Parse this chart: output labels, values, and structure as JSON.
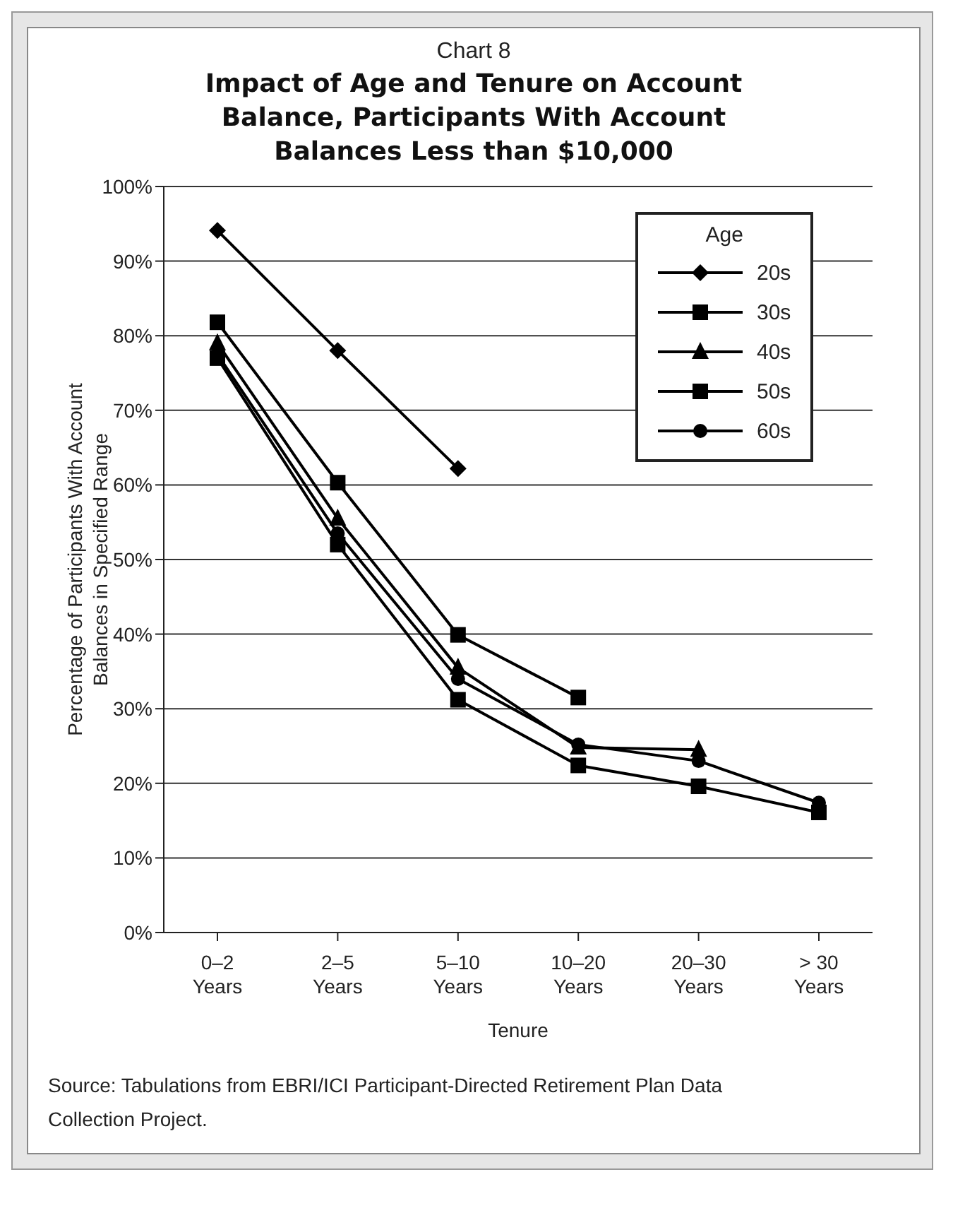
{
  "chart_data": {
    "type": "line",
    "title": "Impact of Age and Tenure on Account Balance, Participants With Account Balances Less than $10,000",
    "subtitle": "Chart 8",
    "xlabel": "Tenure",
    "ylabel": "Percentage of Participants With Account Balances in Specified Range",
    "legend_title": "Age",
    "categories": [
      "0–2\nYears",
      "2–5\nYears",
      "5–10\nYears",
      "10–20\nYears",
      "20–30\nYears",
      "> 30\nYears"
    ],
    "series": [
      {
        "name": "20s",
        "color": "#000000",
        "marker": "diamond",
        "values": [
          94.1,
          78,
          62.2,
          null,
          null,
          null
        ]
      },
      {
        "name": "30s",
        "color": "#000000",
        "marker": "square",
        "values": [
          81.8,
          60.3,
          39.9,
          31.5,
          null,
          null
        ]
      },
      {
        "name": "40s",
        "color": "#000000",
        "marker": "triangle",
        "values": [
          79,
          55.5,
          35.5,
          24.8,
          24.5,
          null
        ]
      },
      {
        "name": "50s",
        "color": "#000000",
        "marker": "square",
        "values": [
          77,
          52,
          31.2,
          22.4,
          19.6,
          16.1
        ]
      },
      {
        "name": "60s",
        "color": "#000000",
        "marker": "circle",
        "values": [
          77.5,
          53.5,
          34,
          25.2,
          23,
          17.4
        ]
      }
    ],
    "ylim": [
      0,
      100
    ],
    "yticks": [
      {
        "value": 0,
        "label": "0%"
      },
      {
        "value": 10,
        "label": "10%"
      },
      {
        "value": 20,
        "label": "20%"
      },
      {
        "value": 30,
        "label": "30%"
      },
      {
        "value": 40,
        "label": "40%"
      },
      {
        "value": 50,
        "label": "50%"
      },
      {
        "value": 60,
        "label": "60%"
      },
      {
        "value": 70,
        "label": "70%"
      },
      {
        "value": 80,
        "label": "80%"
      },
      {
        "value": 90,
        "label": "90%"
      },
      {
        "value": 100,
        "label": "100%"
      }
    ],
    "grid": "y",
    "legend": "top right",
    "line_style": "solid",
    "annotations": [
      "Source: Tabulations from EBRI/ICI Participant-Directed Retirement Plan Data Collection Project."
    ]
  }
}
